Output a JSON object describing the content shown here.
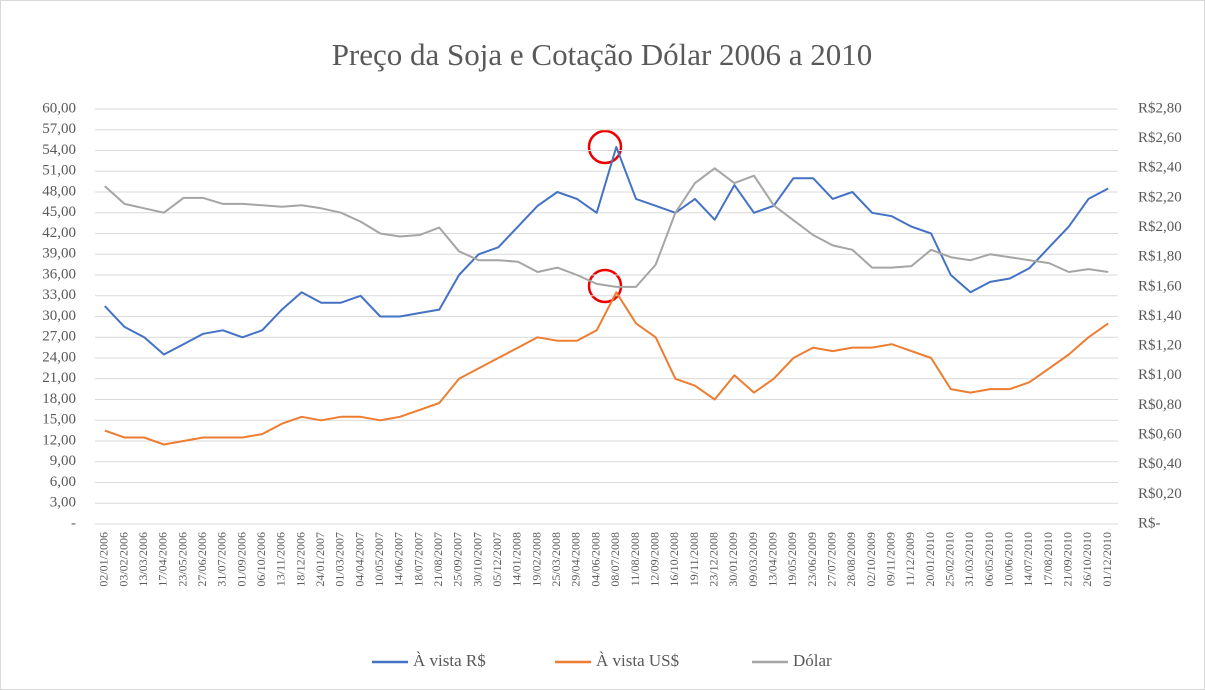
{
  "chart_data": {
    "type": "line",
    "title": "Preço da Soja e Cotação Dólar 2006 a 2010",
    "categories": [
      "02/01/2006",
      "03/02/2006",
      "13/03/2006",
      "17/04/2006",
      "23/05/2006",
      "27/06/2006",
      "31/07/2006",
      "01/09/2006",
      "06/10/2006",
      "13/11/2006",
      "18/12/2006",
      "24/01/2007",
      "01/03/2007",
      "04/04/2007",
      "10/05/2007",
      "14/06/2007",
      "18/07/2007",
      "21/08/2007",
      "25/09/2007",
      "30/10/2007",
      "05/12/2007",
      "14/01/2008",
      "19/02/2008",
      "25/03/2008",
      "29/04/2008",
      "04/06/2008",
      "08/07/2008",
      "11/08/2008",
      "12/09/2008",
      "16/10/2008",
      "19/11/2008",
      "23/12/2008",
      "30/01/2009",
      "09/03/2009",
      "13/04/2009",
      "19/05/2009",
      "23/06/2009",
      "27/07/2009",
      "28/08/2009",
      "02/10/2009",
      "09/11/2009",
      "11/12/2009",
      "20/01/2010",
      "25/02/2010",
      "31/03/2010",
      "06/05/2010",
      "10/06/2010",
      "14/07/2010",
      "17/08/2010",
      "21/09/2010",
      "26/10/2010",
      "01/12/2010"
    ],
    "series": [
      {
        "name": "À vista R$",
        "color": "#4472c4",
        "values": [
          31.5,
          28.5,
          27,
          24.5,
          26,
          27.5,
          28,
          27,
          28,
          31,
          33.5,
          32,
          32,
          33,
          30,
          30,
          30.5,
          31,
          36,
          39,
          40,
          43,
          46,
          48,
          47,
          45,
          54.5,
          47,
          46,
          45,
          47,
          44,
          49,
          45,
          46,
          50,
          50,
          47,
          48,
          45,
          44.5,
          43,
          42,
          36,
          33.5,
          35,
          35.5,
          37,
          40,
          43,
          47,
          48.5
        ]
      },
      {
        "name": "À vista US$",
        "color": "#ed7d31",
        "values": [
          13.5,
          12.5,
          12.5,
          11.5,
          12,
          12.5,
          12.5,
          12.5,
          13,
          14.5,
          15.5,
          15,
          15.5,
          15.5,
          15,
          15.5,
          16.5,
          17.5,
          21,
          22.5,
          24,
          25.5,
          27,
          26.5,
          26.5,
          28,
          33.5,
          29,
          27,
          21,
          20,
          18,
          21.5,
          19,
          21,
          24,
          25.5,
          25,
          25.5,
          25.5,
          26,
          25,
          24,
          19.5,
          19,
          19.5,
          19.5,
          20.5,
          22.5,
          24.5,
          27,
          29
        ]
      },
      {
        "name": "Dólar",
        "color": "#a5a5a5",
        "axis": "y2",
        "values": [
          2.28,
          2.16,
          2.13,
          2.1,
          2.2,
          2.2,
          2.16,
          2.16,
          2.15,
          2.14,
          2.15,
          2.13,
          2.1,
          2.04,
          1.96,
          1.94,
          1.95,
          2.0,
          1.84,
          1.78,
          1.78,
          1.77,
          1.7,
          1.73,
          1.68,
          1.62,
          1.6,
          1.6,
          1.75,
          2.1,
          2.3,
          2.4,
          2.3,
          2.35,
          2.15,
          2.05,
          1.95,
          1.88,
          1.85,
          1.73,
          1.73,
          1.74,
          1.85,
          1.8,
          1.78,
          1.82,
          1.8,
          1.78,
          1.76,
          1.7,
          1.72,
          1.7
        ]
      }
    ],
    "ylim": [
      0,
      60
    ],
    "yticks": [
      {
        "value": 0,
        "label": "-"
      },
      {
        "value": 3,
        "label": "3,00"
      },
      {
        "value": 6,
        "label": "6,00"
      },
      {
        "value": 9,
        "label": "9,00"
      },
      {
        "value": 12,
        "label": "12,00"
      },
      {
        "value": 15,
        "label": "15,00"
      },
      {
        "value": 18,
        "label": "18,00"
      },
      {
        "value": 21,
        "label": "21,00"
      },
      {
        "value": 24,
        "label": "24,00"
      },
      {
        "value": 27,
        "label": "27,00"
      },
      {
        "value": 30,
        "label": "30,00"
      },
      {
        "value": 33,
        "label": "33,00"
      },
      {
        "value": 36,
        "label": "36,00"
      },
      {
        "value": 39,
        "label": "39,00"
      },
      {
        "value": 42,
        "label": "42,00"
      },
      {
        "value": 45,
        "label": "45,00"
      },
      {
        "value": 48,
        "label": "48,00"
      },
      {
        "value": 51,
        "label": "51,00"
      },
      {
        "value": 54,
        "label": "54,00"
      },
      {
        "value": 57,
        "label": "57,00"
      },
      {
        "value": 60,
        "label": "60,00"
      }
    ],
    "y2lim": [
      0,
      2.8
    ],
    "y2ticks": [
      {
        "value": 0,
        "label": "R$-"
      },
      {
        "value": 0.2,
        "label": "R$0,20"
      },
      {
        "value": 0.4,
        "label": "R$0,40"
      },
      {
        "value": 0.6,
        "label": "R$0,60"
      },
      {
        "value": 0.8,
        "label": "R$0,80"
      },
      {
        "value": 1.0,
        "label": "R$1,00"
      },
      {
        "value": 1.2,
        "label": "R$1,20"
      },
      {
        "value": 1.4,
        "label": "R$1,40"
      },
      {
        "value": 1.6,
        "label": "R$1,60"
      },
      {
        "value": 1.8,
        "label": "R$1,80"
      },
      {
        "value": 2.0,
        "label": "R$2,00"
      },
      {
        "value": 2.2,
        "label": "R$2,20"
      },
      {
        "value": 2.4,
        "label": "R$2,40"
      },
      {
        "value": 2.6,
        "label": "R$2,60"
      },
      {
        "value": 2.8,
        "label": "R$2,80"
      }
    ],
    "grid": true,
    "legend": "bottom"
  }
}
